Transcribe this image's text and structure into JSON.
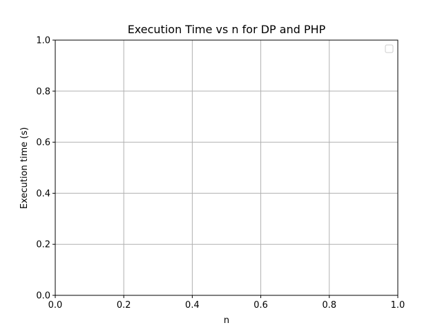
{
  "chart_data": {
    "type": "line",
    "title": "Execution Time vs n for DP and PHP",
    "xlabel": "n",
    "ylabel": "Execution time (s)",
    "xlim": [
      0.0,
      1.0
    ],
    "ylim": [
      0.0,
      1.0
    ],
    "xticks": [
      "0.0",
      "0.2",
      "0.4",
      "0.6",
      "0.8",
      "1.0"
    ],
    "yticks": [
      "0.0",
      "0.2",
      "0.4",
      "0.6",
      "0.8",
      "1.0"
    ],
    "grid": true,
    "legend": {
      "placement": "top-right",
      "entries": []
    },
    "series": []
  }
}
